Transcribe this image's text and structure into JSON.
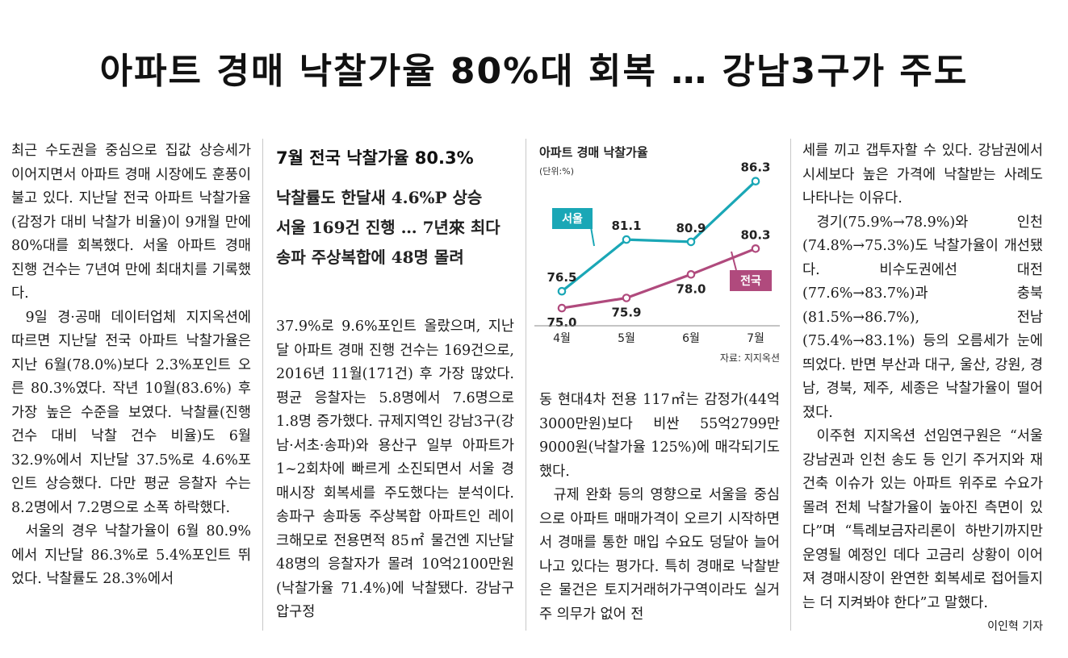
{
  "headline": "아파트 경매 낙찰가율 80%대 회복 … 강남3구가 주도",
  "subhead": {
    "main": "7월 전국 낙찰가율 80.3%",
    "lines": [
      "낙찰률도 한달새 4.6%P 상승",
      "서울 169건 진행 … 7년來 최다",
      "송파 주상복합에 48명 몰려"
    ]
  },
  "col1": {
    "p1": "최근 수도권을 중심으로 집값 상승세가 이어지면서 아파트 경매 시장에도 훈풍이 불고 있다. 지난달 전국 아파트 낙찰가율(감정가 대비 낙찰가 비율)이 9개월 만에 80%대를 회복했다. 서울 아파트 경매 진행 건수는 7년여 만에 최대치를 기록했다.",
    "p2": "9일 경·공매 데이터업체 지지옥션에 따르면 지난달 전국 아파트 낙찰가율은 지난 6월(78.0%)보다 2.3%포인트 오른 80.3%였다. 작년 10월(83.6%) 후 가장 높은 수준을 보였다. 낙찰률(진행 건수 대비 낙찰 건수 비율)도 6월 32.9%에서 지난달 37.5%로 4.6%포인트 상승했다. 다만 평균 응찰자 수는 8.2명에서 7.2명으로 소폭 하락했다.",
    "p3": "서울의 경우 낙찰가율이 6월 80.9%에서 지난달 86.3%로 5.4%포인트 뛰었다. 낙찰률도 28.3%에서"
  },
  "col2": {
    "p1": "37.9%로 9.6%포인트 올랐으며, 지난달 아파트 경매 진행 건수는 169건으로, 2016년 11월(171건) 후 가장 많았다. 평균 응찰자는 5.8명에서 7.6명으로 1.8명 증가했다. 규제지역인 강남3구(강남·서초·송파)와 용산구 일부 아파트가 1~2회차에 빠르게 소진되면서 서울 경매시장 회복세를 주도했다는 분석이다. 송파구 송파동 주상복합 아파트인 레이크해모로 전용면적 85㎡ 물건엔 지난달 48명의 응찰자가 몰려 10억2100만원(낙찰가율 71.4%)에 낙찰됐다. 강남구 압구정"
  },
  "col3": {
    "p1": "동 현대4차 전용 117㎡는 감정가(44억3000만원)보다 비싼 55억2799만9000원(낙찰가율 125%)에 매각되기도 했다.",
    "p2": "규제 완화 등의 영향으로 서울을 중심으로 아파트 매매가격이 오르기 시작하면서 경매를 통한 매입 수요도 덩달아 늘어나고 있다는 평가다. 특히 경매로 낙찰받은 물건은 토지거래허가구역이라도 실거주 의무가 없어 전"
  },
  "col4": {
    "p1": "세를 끼고 갭투자할 수 있다. 강남권에서 시세보다 높은 가격에 낙찰받는 사례도 나타나는 이유다.",
    "p2": "경기(75.9%→78.9%)와 인천(74.8%→75.3%)도 낙찰가율이 개선됐다. 비수도권에선 대전(77.6%→83.7%)과 충북(81.5%→86.7%), 전남(75.4%→83.1%) 등의 오름세가 눈에 띄었다. 반면 부산과 대구, 울산, 강원, 경남, 경북, 제주, 세종은 낙찰가율이 떨어졌다.",
    "p3": "이주현 지지옥션 선임연구원은 “서울 강남권과 인천 송도 등 인기 주거지와 재건축 이슈가 있는 아파트 위주로 수요가 몰려 전체 낙찰가율이 높아진 측면이 있다”며 “특례보금자리론이 하반기까지만 운영될 예정인 데다 고금리 상황이 이어져 경매시장이 완연한 회복세로 접어들지는 더 지켜봐야 한다”고 말했다.",
    "byline": "이인혁 기자"
  },
  "chart_data": {
    "type": "line",
    "title": "아파트 경매 낙찰가율",
    "unit": "(단위:%)",
    "categories": [
      "4월",
      "5월",
      "6월",
      "7월"
    ],
    "ylim": [
      74,
      87.5
    ],
    "series": [
      {
        "name": "서울",
        "values": [
          76.5,
          81.1,
          80.9,
          86.3
        ],
        "color": "#1aa7b6"
      },
      {
        "name": "전국",
        "values": [
          75.0,
          75.9,
          78.0,
          80.3
        ],
        "color": "#b04a7d"
      }
    ],
    "source": "자료: 지지옥션",
    "grid": false,
    "legend": "callout tags"
  }
}
